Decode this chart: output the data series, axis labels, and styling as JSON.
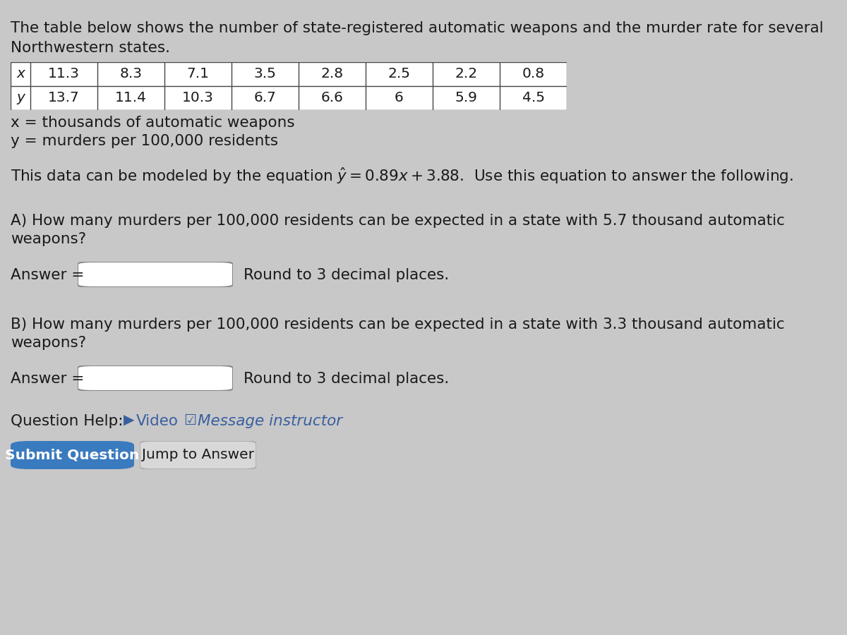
{
  "bg_color": "#c8c8c8",
  "title_text1": "The table below shows the number of state-registered automatic weapons and the murder rate for several",
  "title_text2": "Northwestern states.",
  "table_x_values": [
    "11.3",
    "8.3",
    "7.1",
    "3.5",
    "2.8",
    "2.5",
    "2.2",
    "0.8"
  ],
  "table_y_values": [
    "13.7",
    "11.4",
    "10.3",
    "6.7",
    "6.6",
    "6",
    "5.9",
    "4.5"
  ],
  "x_label": "x",
  "y_label": "y",
  "def_x": "x = thousands of automatic weapons",
  "def_y": "y = murders per 100,000 residents",
  "equation_text": "This data can be modeled by the equation $\\hat{y} = 0.89x + 3.88$.  Use this equation to answer the following.",
  "question_a": "A) How many murders per 100,000 residents can be expected in a state with 5.7 thousand automatic",
  "question_a2": "weapons?",
  "answer_label": "Answer =",
  "round_text": "Round to 3 decimal places.",
  "question_b": "B) How many murders per 100,000 residents can be expected in a state with 3.3 thousand automatic",
  "question_b2": "weapons?",
  "question_help_label": "Question Help:",
  "video_icon": "▶",
  "video_text": "Video",
  "message_icon": "☑",
  "message_text": "Message instructor",
  "submit_btn": "Submit Question",
  "jump_btn": "Jump to Answer",
  "submit_btn_color": "#3a7abf",
  "text_color": "#1a1a1a",
  "link_color": "#3a5fa0",
  "table_border_color": "#444444",
  "font_size": 15.5,
  "font_size_small": 14.5
}
